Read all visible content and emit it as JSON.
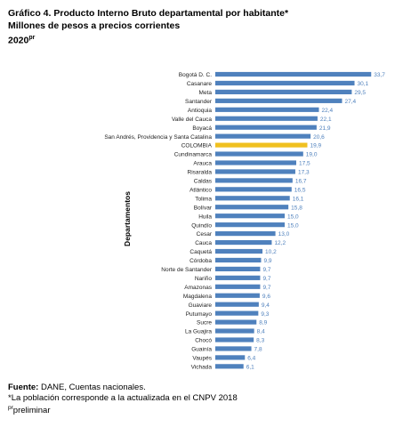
{
  "header": {
    "line1": "Gráfico 4. Producto Interno Bruto departamental por habitante*",
    "line2": "Millones de pesos a precios corrientes",
    "year": "2020",
    "year_sup": "pr"
  },
  "chart_data": {
    "type": "bar",
    "orientation": "horizontal",
    "ylabel": "Departamentos",
    "highlight": "COLOMBIA",
    "categories": [
      "Bogotá D. C.",
      "Casanare",
      "Meta",
      "Santander",
      "Antioquia",
      "Valle del Cauca",
      "Boyacá",
      "San Andrés, Providencia y Santa Catalina",
      "COLOMBIA",
      "Cundinamarca",
      "Arauca",
      "Risaralda",
      "Caldas",
      "Atlántico",
      "Tolima",
      "Bolívar",
      "Huila",
      "Quindío",
      "Cesar",
      "Cauca",
      "Caquetá",
      "Córdoba",
      "Norte de Santander",
      "Nariño",
      "Amazonas",
      "Magdalena",
      "Guaviare",
      "Putumayo",
      "Sucre",
      "La Guajira",
      "Chocó",
      "Guainía",
      "Vaupés",
      "Vichada"
    ],
    "values": [
      33.7,
      30.1,
      29.5,
      27.4,
      22.4,
      22.1,
      21.9,
      20.6,
      19.9,
      19.0,
      17.5,
      17.3,
      16.7,
      16.5,
      16.1,
      15.8,
      15.0,
      15.0,
      13.0,
      12.2,
      10.2,
      9.9,
      9.7,
      9.7,
      9.7,
      9.6,
      9.4,
      9.3,
      8.9,
      8.4,
      8.3,
      7.8,
      6.4,
      6.1
    ],
    "value_labels": [
      "33,7",
      "30,1",
      "29,5",
      "27,4",
      "22,4",
      "22,1",
      "21,9",
      "20,6",
      "19,9",
      "19,0",
      "17,5",
      "17,3",
      "16,7",
      "16,5",
      "16,1",
      "15,8",
      "15,0",
      "15,0",
      "13,0",
      "12,2",
      "10,2",
      "9,9",
      "9,7",
      "9,7",
      "9,7",
      "9,6",
      "9,4",
      "9,3",
      "8,9",
      "8,4",
      "8,3",
      "7,8",
      "6,4",
      "6,1"
    ],
    "colors": {
      "bar": "#4f81bd",
      "highlight": "#f0c020",
      "label": "#4f81bd"
    }
  },
  "footer": {
    "source_label": "Fuente:",
    "source_text": " DANE, Cuentas nacionales.",
    "note": "*La población corresponde a la actualizada en el CNPV 2018",
    "prelim_sup": "pr",
    "prelim_text": "preliminar"
  }
}
